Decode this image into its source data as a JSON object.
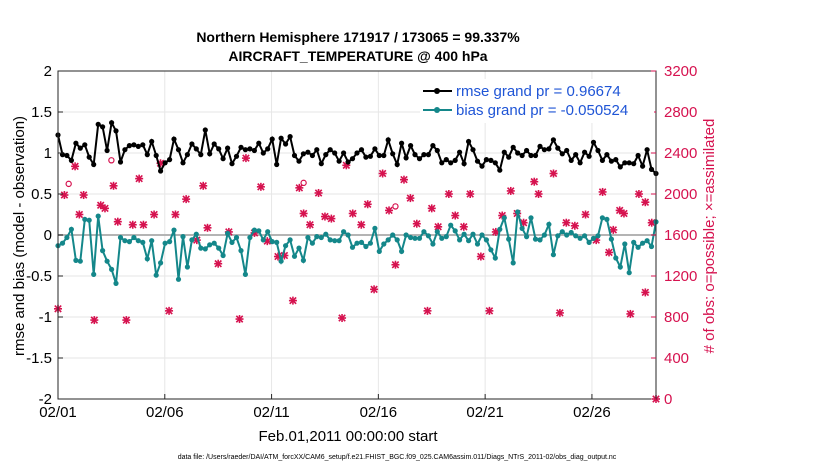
{
  "chart_data": {
    "type": "line",
    "title_line1": "Northern Hemisphere 171917 / 173065 = 99.337%",
    "title_line2": "AIRCRAFT_TEMPERATURE @ 400 hPa",
    "xlabel": "Feb.01,2011 00:00:00 start",
    "ylabel": "rmse and bias (model - observation)",
    "ylabel_right": "# of obs: o=possible; ×=assimilated",
    "ylim": [
      -2,
      2
    ],
    "ylim_right": [
      0,
      3200
    ],
    "xlim": [
      0,
      28
    ],
    "x_tick_values": [
      0,
      5,
      10,
      15,
      20,
      25
    ],
    "x_tick_labels": [
      "02/01",
      "02/06",
      "02/11",
      "02/16",
      "02/21",
      "02/26"
    ],
    "y_ticks": [
      "-2",
      "-1.5",
      "-1",
      "-0.5",
      "0",
      "0.5",
      "1",
      "1.5",
      "2"
    ],
    "y_ticks_right": [
      "0",
      "400",
      "800",
      "1200",
      "1600",
      "2000",
      "2400",
      "2800",
      "3200"
    ],
    "colors": {
      "rmse": "#000000",
      "bias": "#14878a",
      "obs": "#d6124f",
      "legend_text": "#1f55d6",
      "zero_line": "#b4b4b4"
    },
    "legend_position": "top-right",
    "series": [
      {
        "name": "rmse grand pr = 0.96674",
        "values": [
          1.22,
          0.98,
          0.97,
          0.91,
          1.12,
          1.06,
          1.1,
          0.95,
          0.86,
          1.35,
          1.32,
          1.03,
          1.37,
          1.27,
          0.89,
          1.04,
          1.09,
          1.1,
          1.08,
          1.1,
          0.98,
          1.14,
          0.97,
          0.78,
          0.88,
          0.92,
          1.17,
          1.04,
          0.88,
          0.98,
          1.11,
          1.05,
          0.98,
          1.28,
          0.99,
          1.11,
          1.05,
          0.93,
          1.06,
          0.87,
          0.96,
          1.07,
          1.04,
          1.05,
          1.03,
          1.12,
          1.0,
          1.05,
          1.17,
          0.86,
          1.18,
          1.11,
          1.2,
          0.97,
          0.9,
          0.99,
          1.01,
          0.97,
          1.04,
          0.87,
          0.98,
          1.04,
          1.0,
          0.9,
          1.0,
          0.89,
          0.93,
          1.0,
          1.04,
          0.95,
          0.96,
          1.05,
          0.97,
          0.97,
          1.16,
          0.99,
          0.86,
          1.12,
          0.94,
          1.09,
          0.98,
          0.93,
          0.98,
          0.98,
          1.09,
          1.03,
          0.88,
          0.92,
          0.88,
          0.91,
          1.01,
          0.87,
          1.14,
          1.04,
          0.9,
          0.84,
          0.92,
          0.91,
          0.88,
          0.79,
          1.01,
          0.95,
          1.07,
          1.0,
          0.97,
          1.03,
          0.97,
          0.97,
          1.08,
          1.04,
          1.05,
          1.16,
          1.06,
          0.99,
          1.03,
          0.91,
          0.98,
          0.88,
          1.01,
          0.96,
          1.13,
          1.03,
          0.91,
          0.98,
          0.9,
          0.92,
          0.83,
          0.88,
          0.88,
          0.87,
          0.97,
          0.84,
          1.04,
          0.8,
          0.75
        ]
      },
      {
        "name": "bias grand pr = -0.050524",
        "values": [
          -0.13,
          -0.1,
          -0.03,
          0.07,
          -0.31,
          -0.32,
          0.19,
          0.18,
          -0.48,
          0.23,
          -0.19,
          -0.32,
          -0.42,
          -0.59,
          -0.03,
          -0.07,
          -0.08,
          -0.03,
          -0.07,
          -0.09,
          -0.29,
          -0.07,
          -0.49,
          -0.34,
          -0.1,
          -0.08,
          0.06,
          -0.54,
          -0.02,
          -0.39,
          -0.06,
          0.01,
          -0.16,
          -0.17,
          -0.12,
          -0.1,
          -0.16,
          -0.25,
          0.02,
          -0.09,
          -0.03,
          -0.19,
          -0.48,
          -0.03,
          0.06,
          0.05,
          -0.06,
          0.04,
          -0.08,
          -0.09,
          -0.32,
          -0.13,
          -0.06,
          -0.26,
          -0.16,
          -0.31,
          -0.03,
          -0.1,
          -0.02,
          -0.03,
          0.01,
          -0.06,
          -0.07,
          -0.07,
          0.04,
          0.0,
          -0.15,
          -0.1,
          -0.09,
          -0.14,
          -0.1,
          0.08,
          -0.2,
          -0.11,
          -0.06,
          0.0,
          -0.06,
          -0.2,
          0.0,
          -0.03,
          -0.04,
          -0.04,
          0.04,
          -0.01,
          -0.11,
          0.04,
          -0.04,
          -0.02,
          0.12,
          0.05,
          -0.06,
          0.01,
          -0.07,
          0.01,
          -0.11,
          0.0,
          -0.06,
          -0.18,
          -0.28,
          0.07,
          0.21,
          -0.05,
          -0.34,
          0.28,
          0.08,
          -0.02,
          0.21,
          -0.05,
          -0.06,
          0.0,
          0.13,
          -0.24,
          -0.01,
          0.04,
          0.0,
          0.03,
          -0.01,
          -0.04,
          -0.01,
          -0.09,
          -0.04,
          -0.01,
          0.21,
          0.19,
          -0.05,
          -0.28,
          -0.39,
          -0.11,
          -0.46,
          -0.09,
          -0.15,
          -0.1,
          -0.07,
          -0.14,
          0.16
        ]
      }
    ],
    "obs_possible": {
      "name": "possible",
      "marker": "o",
      "points": [
        [
          0.5,
          2050
        ],
        [
          2.5,
          2280
        ],
        [
          15.8,
          1830
        ],
        [
          11.5,
          2060
        ]
      ]
    },
    "obs_assimilated": {
      "name": "assimilated",
      "marker": "×",
      "points": [
        [
          0,
          880
        ],
        [
          0.3,
          1990
        ],
        [
          0.8,
          2270
        ],
        [
          1,
          1800
        ],
        [
          1.2,
          1990
        ],
        [
          1.7,
          770
        ],
        [
          2,
          1890
        ],
        [
          2.2,
          1860
        ],
        [
          2.6,
          2080
        ],
        [
          2.8,
          1730
        ],
        [
          3.2,
          770
        ],
        [
          3.5,
          1700
        ],
        [
          3.8,
          2150
        ],
        [
          4,
          1700
        ],
        [
          4.5,
          1800
        ],
        [
          4.8,
          2300
        ],
        [
          5.2,
          860
        ],
        [
          5.5,
          1800
        ],
        [
          6,
          1950
        ],
        [
          6.5,
          1550
        ],
        [
          6.8,
          2080
        ],
        [
          7,
          1670
        ],
        [
          7.5,
          1320
        ],
        [
          8,
          1630
        ],
        [
          8.5,
          780
        ],
        [
          8.8,
          2350
        ],
        [
          9.2,
          1620
        ],
        [
          9.5,
          2070
        ],
        [
          9.8,
          1540
        ],
        [
          10.3,
          1390
        ],
        [
          10.6,
          1400
        ],
        [
          11,
          960
        ],
        [
          11.3,
          2060
        ],
        [
          11.5,
          1810
        ],
        [
          11.8,
          1700
        ],
        [
          12.2,
          2010
        ],
        [
          12.5,
          1780
        ],
        [
          12.8,
          1760
        ],
        [
          13.3,
          790
        ],
        [
          13.5,
          2280
        ],
        [
          13.8,
          1810
        ],
        [
          14.2,
          1700
        ],
        [
          14.5,
          1900
        ],
        [
          14.8,
          1070
        ],
        [
          15.2,
          2200
        ],
        [
          15.5,
          1840
        ],
        [
          15.8,
          1310
        ],
        [
          16.2,
          2140
        ],
        [
          16.5,
          1960
        ],
        [
          16.8,
          1710
        ],
        [
          17.3,
          860
        ],
        [
          17.5,
          1860
        ],
        [
          17.8,
          1680
        ],
        [
          18.3,
          2000
        ],
        [
          18.6,
          1790
        ],
        [
          19,
          1680
        ],
        [
          19.3,
          2000
        ],
        [
          19.8,
          1390
        ],
        [
          20.2,
          860
        ],
        [
          20.5,
          1630
        ],
        [
          20.8,
          1790
        ],
        [
          21.2,
          2030
        ],
        [
          21.5,
          1810
        ],
        [
          21.8,
          1720
        ],
        [
          22.3,
          2120
        ],
        [
          22.5,
          2000
        ],
        [
          23.2,
          2200
        ],
        [
          23.5,
          840
        ],
        [
          23.8,
          1720
        ],
        [
          24.2,
          1690
        ],
        [
          24.7,
          1800
        ],
        [
          25.2,
          1550
        ],
        [
          25.5,
          2020
        ],
        [
          26,
          1650
        ],
        [
          26.3,
          1840
        ],
        [
          26.8,
          830
        ],
        [
          27.2,
          2000
        ],
        [
          27.5,
          1920
        ],
        [
          28,
          0
        ],
        [
          27.8,
          1720
        ],
        [
          27.5,
          1040
        ],
        [
          26.5,
          1810
        ],
        [
          25.8,
          1430
        ]
      ]
    },
    "footnote": "data file: /Users/raeder/DAI/ATM_forcXX/CAM6_setup/f.e21.FHIST_BGC.f09_025.CAM6assim.011/Diags_NTrS_2011-02/obs_diag_output.nc"
  }
}
